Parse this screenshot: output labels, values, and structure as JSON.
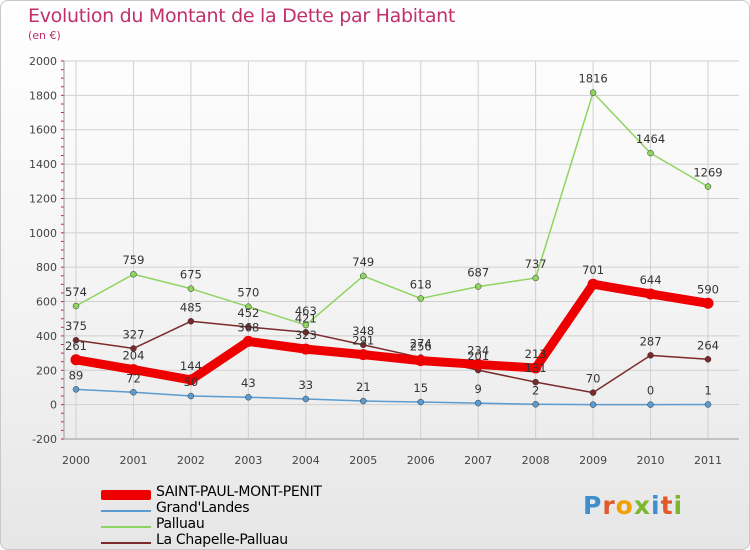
{
  "header": {
    "title": "Evolution du Montant de la Dette par Habitant",
    "unit": "(en €)"
  },
  "logo_text": [
    "P",
    "r",
    "o",
    "x",
    "i",
    "t",
    "i"
  ],
  "chart_data": {
    "type": "line",
    "title": "Evolution du Montant de la Dette par Habitant",
    "subtitle": "(en €)",
    "xlabel": "",
    "ylabel": "",
    "categories": [
      "2000",
      "2001",
      "2002",
      "2003",
      "2004",
      "2005",
      "2006",
      "2007",
      "2008",
      "2009",
      "2010",
      "2011"
    ],
    "ylim": [
      -200,
      2000
    ],
    "yticks": [
      -200,
      0,
      200,
      400,
      600,
      800,
      1000,
      1200,
      1400,
      1600,
      1800,
      2000
    ],
    "grid": true,
    "legend_position": "bottom-left",
    "series": [
      {
        "name": "SAINT-PAUL-MONT-PENIT",
        "color": "#ee0000",
        "values": [
          261,
          204,
          144,
          368,
          323,
          291,
          256,
          234,
          213,
          701,
          644,
          590
        ]
      },
      {
        "name": "Grand'Landes",
        "color": "#5b9bd0",
        "values": [
          89,
          72,
          50,
          43,
          33,
          21,
          15,
          9,
          2,
          0,
          0,
          1
        ]
      },
      {
        "name": "Palluau",
        "color": "#8fd460",
        "values": [
          574,
          759,
          675,
          570,
          463,
          749,
          618,
          687,
          737,
          1816,
          1464,
          1269
        ]
      },
      {
        "name": "La Chapelle-Palluau",
        "color": "#7a2a2a",
        "values": [
          375,
          327,
          485,
          452,
          421,
          348,
          274,
          201,
          131,
          70,
          287,
          264
        ]
      }
    ],
    "data_labels": [
      [
        "261",
        "204",
        "144",
        "368",
        "323",
        "291",
        "256",
        "234",
        "213",
        "701",
        "644",
        "590"
      ],
      [
        "89",
        "72",
        "50",
        "43",
        "33",
        "21",
        "15",
        "9",
        "2",
        "",
        "0",
        "1"
      ],
      [
        "574",
        "759",
        "675",
        "570",
        "463",
        "749",
        "618",
        "687",
        "737",
        "1816",
        "1464",
        "1269"
      ],
      [
        "375",
        "327",
        "485",
        "452",
        "421",
        "348",
        "274",
        "201",
        "131",
        "70",
        "287",
        "264"
      ]
    ]
  }
}
